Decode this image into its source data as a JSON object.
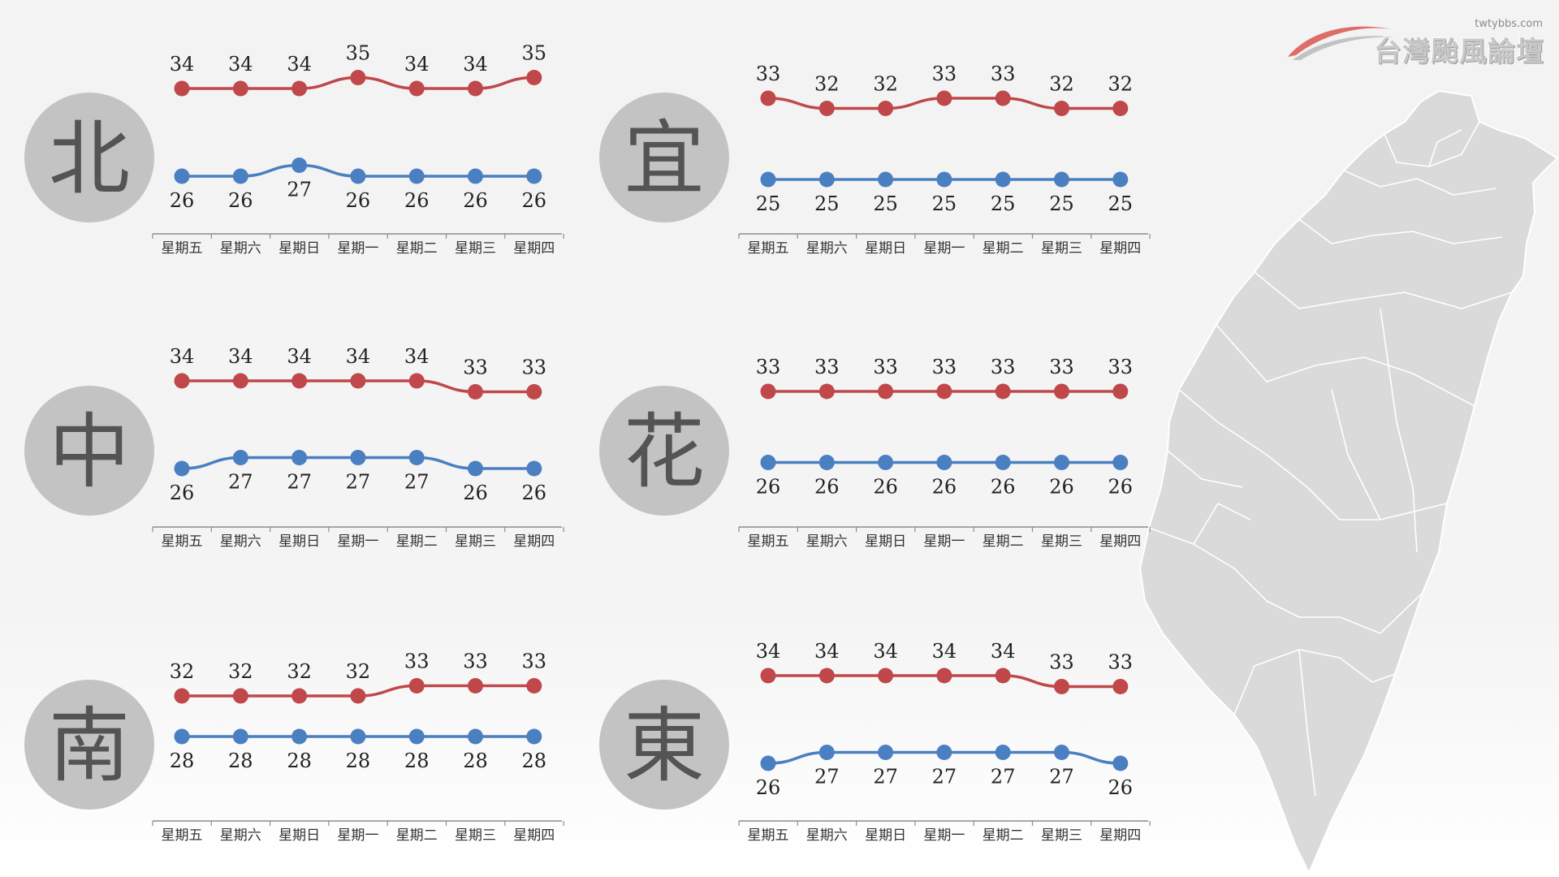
{
  "logo": {
    "url_text": "twtybbs.com",
    "name_text": "台灣颱風論壇"
  },
  "colors": {
    "high": "#c0474a",
    "low": "#4a7fc1",
    "circle": "#c3c3c3",
    "region_text": "#545454",
    "axis": "#8c8c8c",
    "map_fill": "#dadada",
    "map_line": "#ffffff"
  },
  "chart_data": [
    {
      "type": "line",
      "region": "北",
      "categories": [
        "星期五",
        "星期六",
        "星期日",
        "星期一",
        "星期二",
        "星期三",
        "星期四"
      ],
      "series": [
        {
          "values": [
            34,
            34,
            34,
            35,
            34,
            34,
            35
          ]
        },
        {
          "values": [
            26,
            26,
            27,
            26,
            26,
            26,
            26
          ]
        }
      ]
    },
    {
      "type": "line",
      "region": "宜",
      "categories": [
        "星期五",
        "星期六",
        "星期日",
        "星期一",
        "星期二",
        "星期三",
        "星期四"
      ],
      "series": [
        {
          "values": [
            33,
            32,
            32,
            33,
            33,
            32,
            32
          ]
        },
        {
          "values": [
            25,
            25,
            25,
            25,
            25,
            25,
            25
          ]
        }
      ]
    },
    {
      "type": "line",
      "region": "中",
      "categories": [
        "星期五",
        "星期六",
        "星期日",
        "星期一",
        "星期二",
        "星期三",
        "星期四"
      ],
      "series": [
        {
          "values": [
            34,
            34,
            34,
            34,
            34,
            33,
            33
          ]
        },
        {
          "values": [
            26,
            27,
            27,
            27,
            27,
            26,
            26
          ]
        }
      ]
    },
    {
      "type": "line",
      "region": "花",
      "categories": [
        "星期五",
        "星期六",
        "星期日",
        "星期一",
        "星期二",
        "星期三",
        "星期四"
      ],
      "series": [
        {
          "values": [
            33,
            33,
            33,
            33,
            33,
            33,
            33
          ]
        },
        {
          "values": [
            26,
            26,
            26,
            26,
            26,
            26,
            26
          ]
        }
      ]
    },
    {
      "type": "line",
      "region": "南",
      "categories": [
        "星期五",
        "星期六",
        "星期日",
        "星期一",
        "星期二",
        "星期三",
        "星期四"
      ],
      "series": [
        {
          "values": [
            32,
            32,
            32,
            32,
            33,
            33,
            33
          ]
        },
        {
          "values": [
            28,
            28,
            28,
            28,
            28,
            28,
            28
          ]
        }
      ]
    },
    {
      "type": "line",
      "region": "東",
      "categories": [
        "星期五",
        "星期六",
        "星期日",
        "星期一",
        "星期二",
        "星期三",
        "星期四"
      ],
      "series": [
        {
          "values": [
            34,
            34,
            34,
            34,
            34,
            33,
            33
          ]
        },
        {
          "values": [
            26,
            27,
            27,
            27,
            27,
            27,
            26
          ]
        }
      ]
    }
  ]
}
